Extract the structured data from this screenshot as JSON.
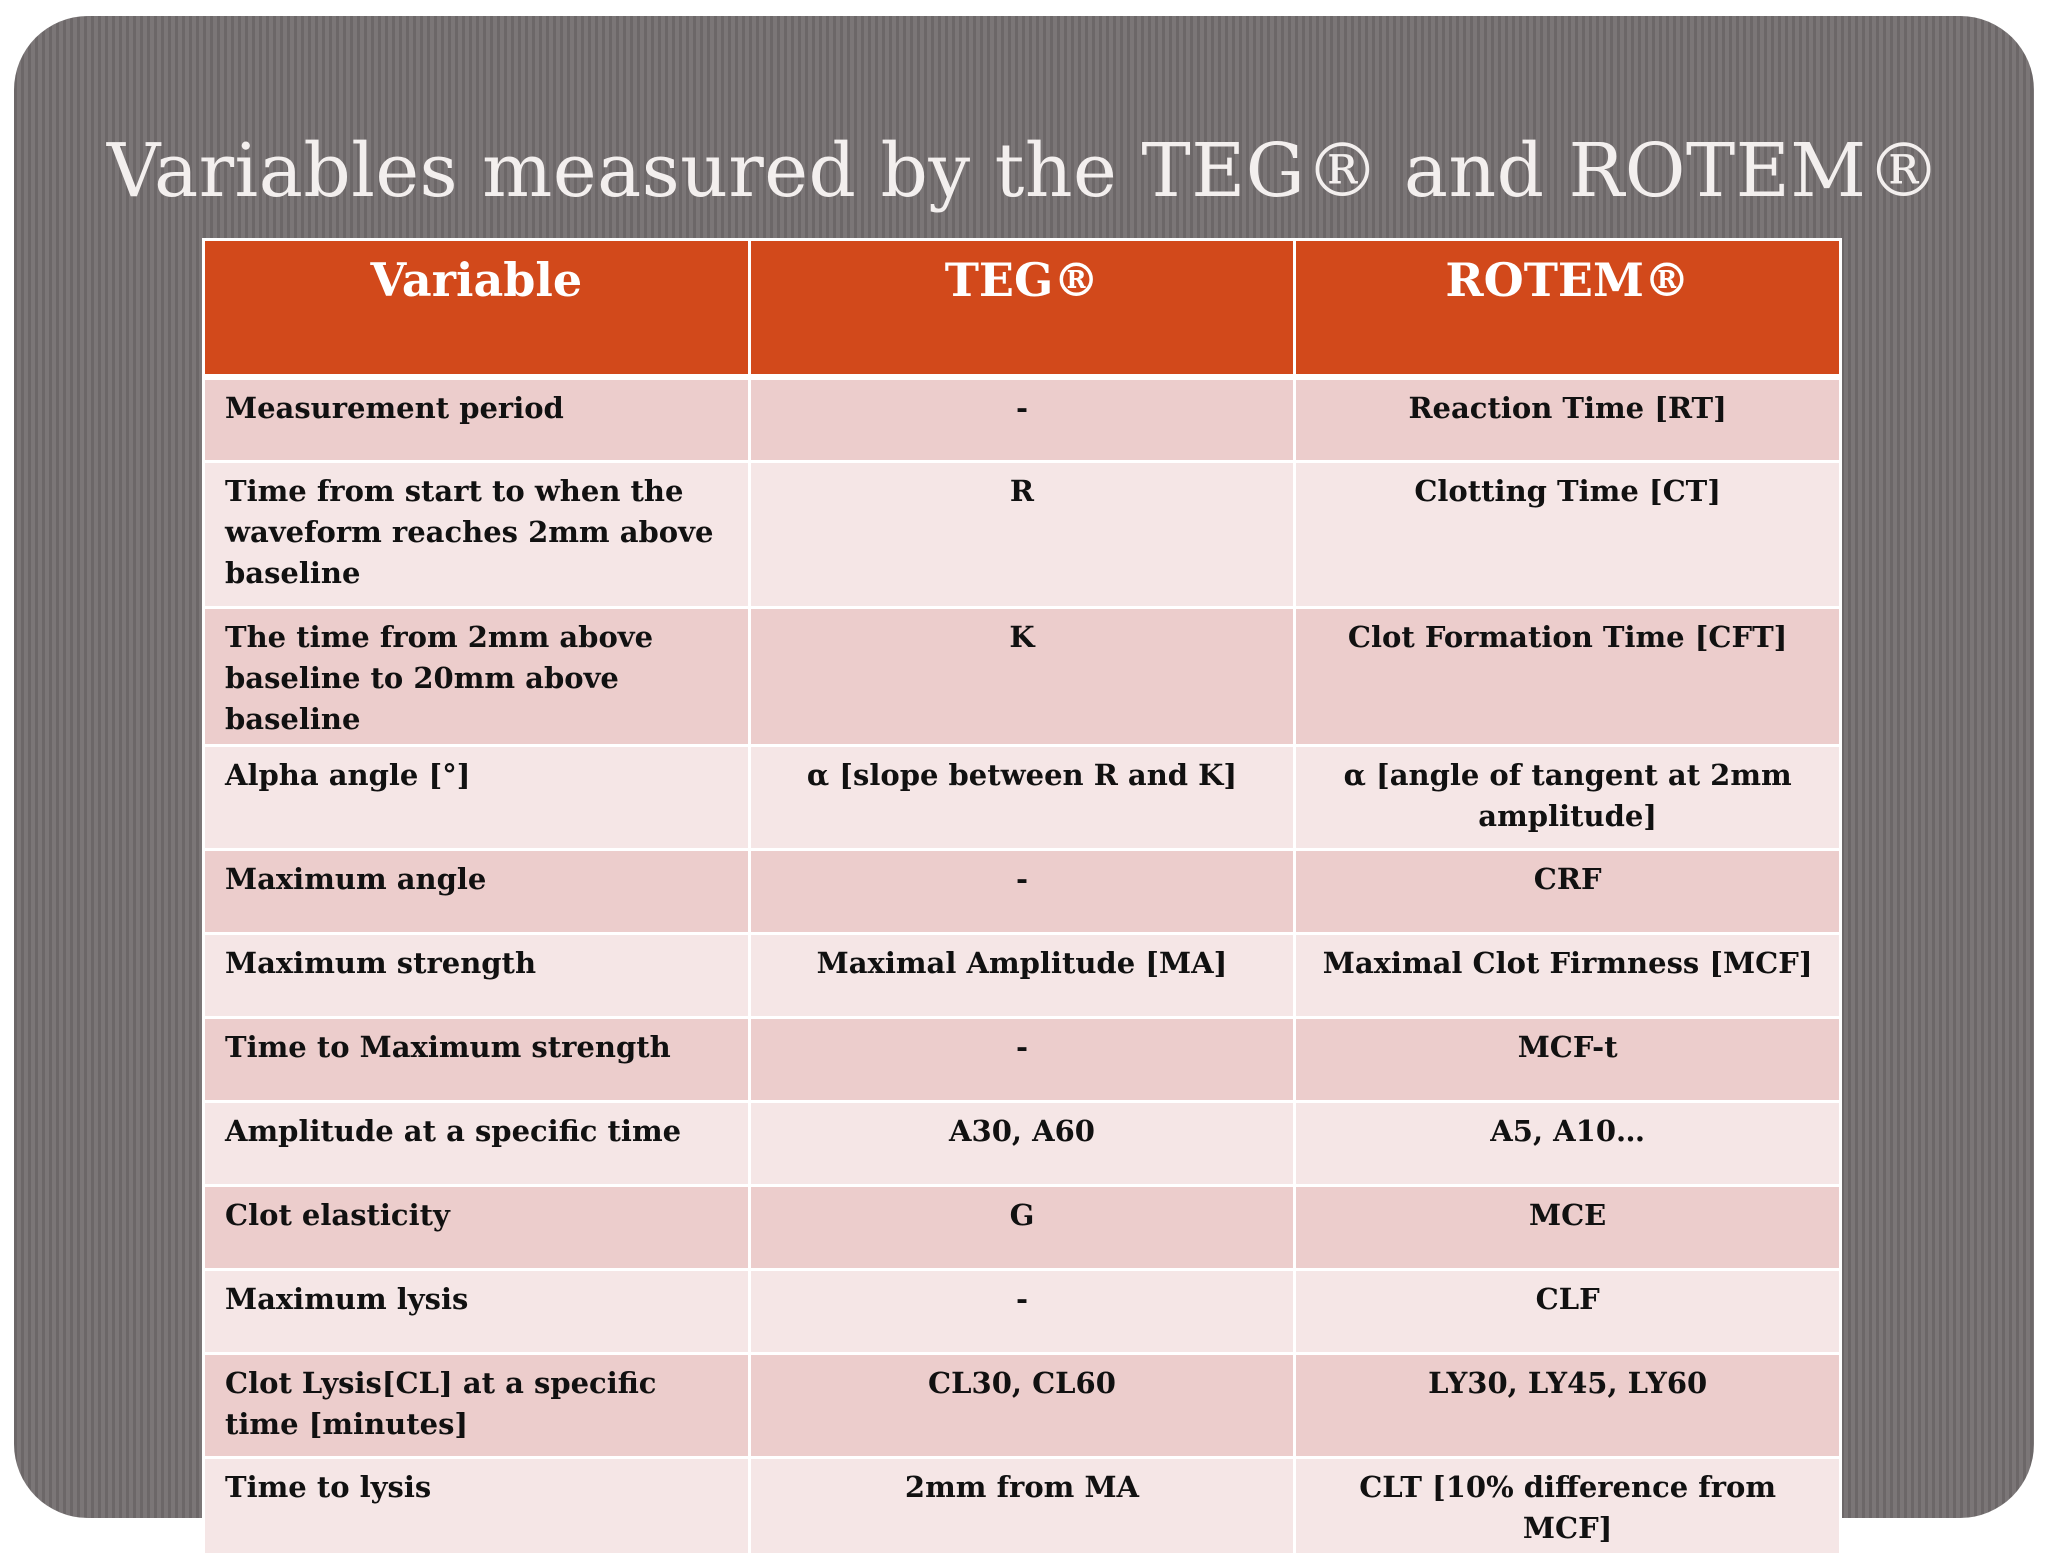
{
  "slide": {
    "title": "Variables measured by the TEG® and ROTEM®"
  },
  "table": {
    "headers": [
      "Variable",
      "TEG®",
      "ROTEM®"
    ],
    "rows": [
      [
        "Measurement period",
        "-",
        "Reaction Time [RT]"
      ],
      [
        "Time from start to when the waveform reaches 2mm above baseline",
        "R",
        "Clotting Time [CT]"
      ],
      [
        "The time from 2mm above baseline to 20mm above baseline",
        "K",
        "Clot Formation Time [CFT]"
      ],
      [
        "Alpha angle [°]",
        "α [slope between R and K]",
        "α [angle of tangent at 2mm amplitude]"
      ],
      [
        "Maximum angle",
        "-",
        "CRF"
      ],
      [
        "Maximum strength",
        "Maximal Amplitude [MA]",
        "Maximal Clot Firmness [MCF]"
      ],
      [
        "Time to Maximum strength",
        "-",
        "MCF-t"
      ],
      [
        "Amplitude at a specific time",
        "A30, A60",
        "A5, A10…"
      ],
      [
        "Clot elasticity",
        "G",
        "MCE"
      ],
      [
        "Maximum lysis",
        "-",
        "CLF"
      ],
      [
        "Clot Lysis[CL] at a specific time [minutes]",
        "CL30, CL60",
        "LY30, LY45, LY60"
      ],
      [
        "Time to lysis",
        "2mm from MA",
        "CLT [10% difference from MCF]"
      ]
    ]
  },
  "colors": {
    "header_bg": "#d2491b",
    "row_odd_bg": "#eccdcc",
    "row_even_bg": "#f5e6e6",
    "slide_bg": "#6f6a6b"
  }
}
